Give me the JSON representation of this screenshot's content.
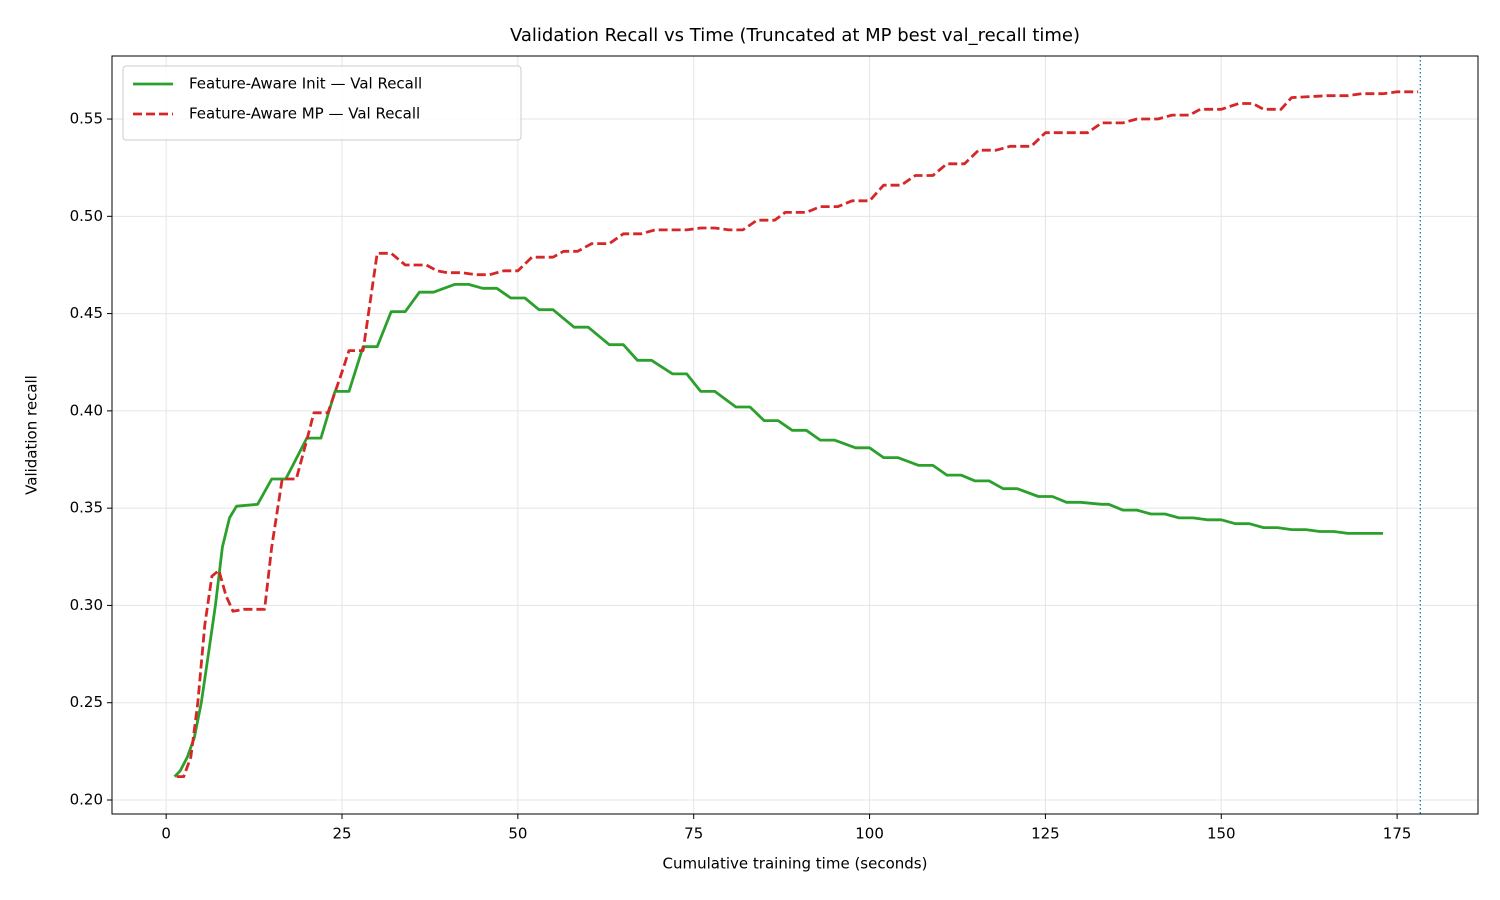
{
  "chart_data": {
    "type": "line",
    "title": "Validation Recall vs Time (Truncated at MP best val_recall time)",
    "x_label": "Cumulative training time (seconds)",
    "y_label": "Validation recall",
    "xlim": [
      -7.7,
      186.5
    ],
    "ylim": [
      0.1928,
      0.5824
    ],
    "xticks": [
      0,
      25,
      50,
      75,
      100,
      125,
      150,
      175
    ],
    "yticks": [
      {
        "value": 0.2,
        "label": "0.20"
      },
      0.25,
      {
        "value": 0.3,
        "label": "0.30"
      },
      0.35,
      {
        "value": 0.4,
        "label": "0.40"
      },
      0.45,
      {
        "value": 0.5,
        "label": "0.50"
      },
      0.55
    ],
    "grid": true,
    "legend": "upper left",
    "vline": {
      "x": 178.3,
      "color": "#1f77b4"
    },
    "series": [
      {
        "name": "Feature-Aware Init — Val Recall",
        "color": "#2ca02c",
        "dash": "solid",
        "x": [
          1.2,
          2,
          3,
          4,
          5,
          6,
          7,
          8,
          9,
          10,
          13,
          15,
          17,
          18,
          20,
          22,
          24,
          26,
          28,
          30,
          32,
          34,
          36,
          38,
          41,
          43,
          45,
          47,
          49,
          51,
          53,
          55,
          58,
          60,
          63,
          65,
          67,
          69,
          72,
          74,
          76,
          78,
          81,
          83,
          85,
          87,
          89,
          91,
          93,
          95,
          98,
          100,
          102,
          104,
          107,
          109,
          111,
          113,
          115,
          117,
          119,
          121,
          124,
          126,
          128,
          130,
          133,
          134,
          136,
          138,
          140,
          142,
          144,
          146,
          148,
          150,
          152,
          154,
          156,
          158,
          160,
          162,
          164,
          166,
          168,
          173
        ],
        "values": [
          0.212,
          0.215,
          0.222,
          0.232,
          0.25,
          0.275,
          0.3,
          0.33,
          0.345,
          0.351,
          0.352,
          0.365,
          0.365,
          0.372,
          0.386,
          0.386,
          0.41,
          0.41,
          0.433,
          0.433,
          0.451,
          0.451,
          0.461,
          0.461,
          0.465,
          0.465,
          0.463,
          0.463,
          0.458,
          0.458,
          0.452,
          0.452,
          0.443,
          0.443,
          0.434,
          0.434,
          0.426,
          0.426,
          0.419,
          0.419,
          0.41,
          0.41,
          0.402,
          0.402,
          0.395,
          0.395,
          0.39,
          0.39,
          0.385,
          0.385,
          0.381,
          0.381,
          0.376,
          0.376,
          0.372,
          0.372,
          0.367,
          0.367,
          0.364,
          0.364,
          0.36,
          0.36,
          0.356,
          0.356,
          0.353,
          0.353,
          0.352,
          0.352,
          0.349,
          0.349,
          0.347,
          0.347,
          0.345,
          0.345,
          0.344,
          0.344,
          0.342,
          0.342,
          0.34,
          0.34,
          0.339,
          0.339,
          0.338,
          0.338,
          0.337,
          0.337
        ]
      },
      {
        "name": "Feature-Aware MP — Val Recall",
        "color": "#d62728",
        "dash": "dashed",
        "x": [
          1.5,
          2.5,
          3.5,
          4.5,
          5.5,
          6.5,
          7.5,
          8.5,
          9.5,
          11,
          14,
          15,
          16.5,
          18.5,
          20,
          21,
          23,
          25,
          26,
          28,
          30,
          32,
          34,
          37,
          38.5,
          40,
          42,
          44,
          46,
          48,
          50,
          52,
          55,
          56.5,
          58.5,
          60.5,
          63,
          65,
          67.5,
          69.5,
          74,
          76,
          78,
          80,
          82,
          84,
          86.5,
          88,
          91,
          93,
          95.5,
          97.5,
          100,
          102,
          104.5,
          106.5,
          109,
          111,
          113.5,
          115.5,
          118,
          120,
          123,
          125,
          131,
          133,
          136,
          138,
          141,
          143,
          145.5,
          147,
          150,
          152.5,
          154.5,
          156,
          158.5,
          160,
          165,
          168,
          170,
          173,
          175,
          178
        ],
        "values": [
          0.212,
          0.212,
          0.222,
          0.25,
          0.29,
          0.315,
          0.318,
          0.305,
          0.297,
          0.298,
          0.298,
          0.33,
          0.365,
          0.365,
          0.385,
          0.399,
          0.399,
          0.42,
          0.431,
          0.431,
          0.481,
          0.481,
          0.475,
          0.475,
          0.472,
          0.471,
          0.471,
          0.47,
          0.47,
          0.472,
          0.472,
          0.479,
          0.479,
          0.482,
          0.482,
          0.486,
          0.486,
          0.491,
          0.491,
          0.493,
          0.493,
          0.494,
          0.494,
          0.493,
          0.493,
          0.498,
          0.498,
          0.502,
          0.502,
          0.505,
          0.505,
          0.508,
          0.508,
          0.516,
          0.516,
          0.521,
          0.521,
          0.527,
          0.527,
          0.534,
          0.534,
          0.536,
          0.536,
          0.543,
          0.543,
          0.548,
          0.548,
          0.55,
          0.55,
          0.552,
          0.552,
          0.555,
          0.555,
          0.558,
          0.558,
          0.555,
          0.555,
          0.561,
          0.562,
          0.562,
          0.563,
          0.563,
          0.564,
          0.564
        ]
      }
    ]
  }
}
